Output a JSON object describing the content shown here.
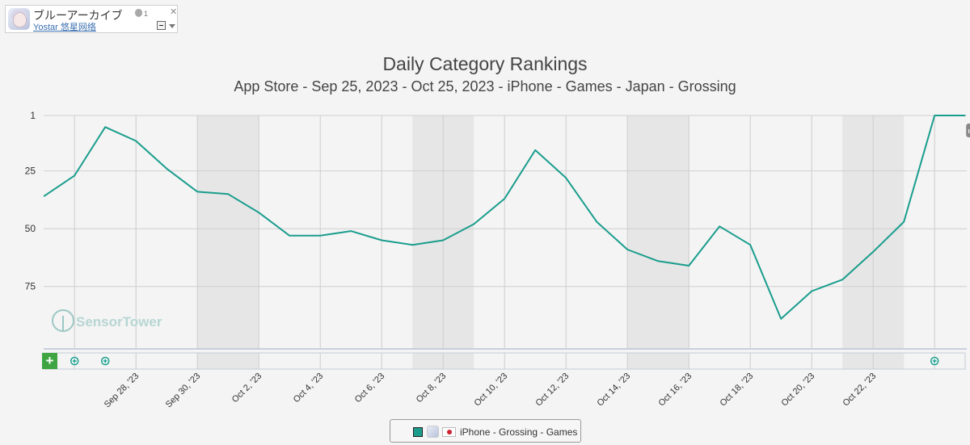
{
  "app_card": {
    "name": "ブルーアーカイブ",
    "publisher": "Yostar 悠星网络",
    "apple_count": "1",
    "close_symbol": "✕"
  },
  "chart_data": {
    "type": "line",
    "title": "Daily Category Rankings",
    "subtitle": "App Store - Sep 25, 2023 - Oct 25, 2023 - iPhone - Games - Japan - Grossing",
    "y_axis": {
      "reversed": true,
      "ticks": [
        1,
        25,
        50,
        75
      ],
      "range": [
        1,
        102
      ]
    },
    "x_tick_labels": [
      "Sep 28, '23",
      "Sep 30, '23",
      "Oct 2, '23",
      "Oct 4, '23",
      "Oct 6, '23",
      "Oct 8, '23",
      "Oct 10, '23",
      "Oct 12, '23",
      "Oct 14, '23",
      "Oct 16, '23",
      "Oct 18, '23",
      "Oct 20, '23",
      "Oct 22, '23"
    ],
    "x": [
      "2023-09-25",
      "2023-09-26",
      "2023-09-27",
      "2023-09-28",
      "2023-09-29",
      "2023-09-30",
      "2023-10-01",
      "2023-10-02",
      "2023-10-03",
      "2023-10-04",
      "2023-10-05",
      "2023-10-06",
      "2023-10-07",
      "2023-10-08",
      "2023-10-09",
      "2023-10-10",
      "2023-10-11",
      "2023-10-12",
      "2023-10-13",
      "2023-10-14",
      "2023-10-15",
      "2023-10-16",
      "2023-10-17",
      "2023-10-18",
      "2023-10-19",
      "2023-10-20",
      "2023-10-21",
      "2023-10-22",
      "2023-10-23",
      "2023-10-24",
      "2023-10-25"
    ],
    "series": [
      {
        "name": "iPhone - Grossing - Games",
        "color": "#1a9d8d",
        "values": [
          36,
          27,
          6,
          12,
          24,
          34,
          35,
          43,
          53,
          53,
          51,
          55,
          57,
          55,
          48,
          37,
          16,
          28,
          47,
          59,
          64,
          66,
          49,
          57,
          89,
          77,
          72,
          60,
          47,
          1,
          1
        ]
      }
    ],
    "weekend_bands": true,
    "event_markers": [
      "2023-09-26",
      "2023-09-27",
      "2023-10-24"
    ],
    "badge": "IMG",
    "watermark": "SensorTower",
    "add_symbol": "+"
  },
  "legend": {
    "label": "iPhone - Grossing - Games"
  }
}
